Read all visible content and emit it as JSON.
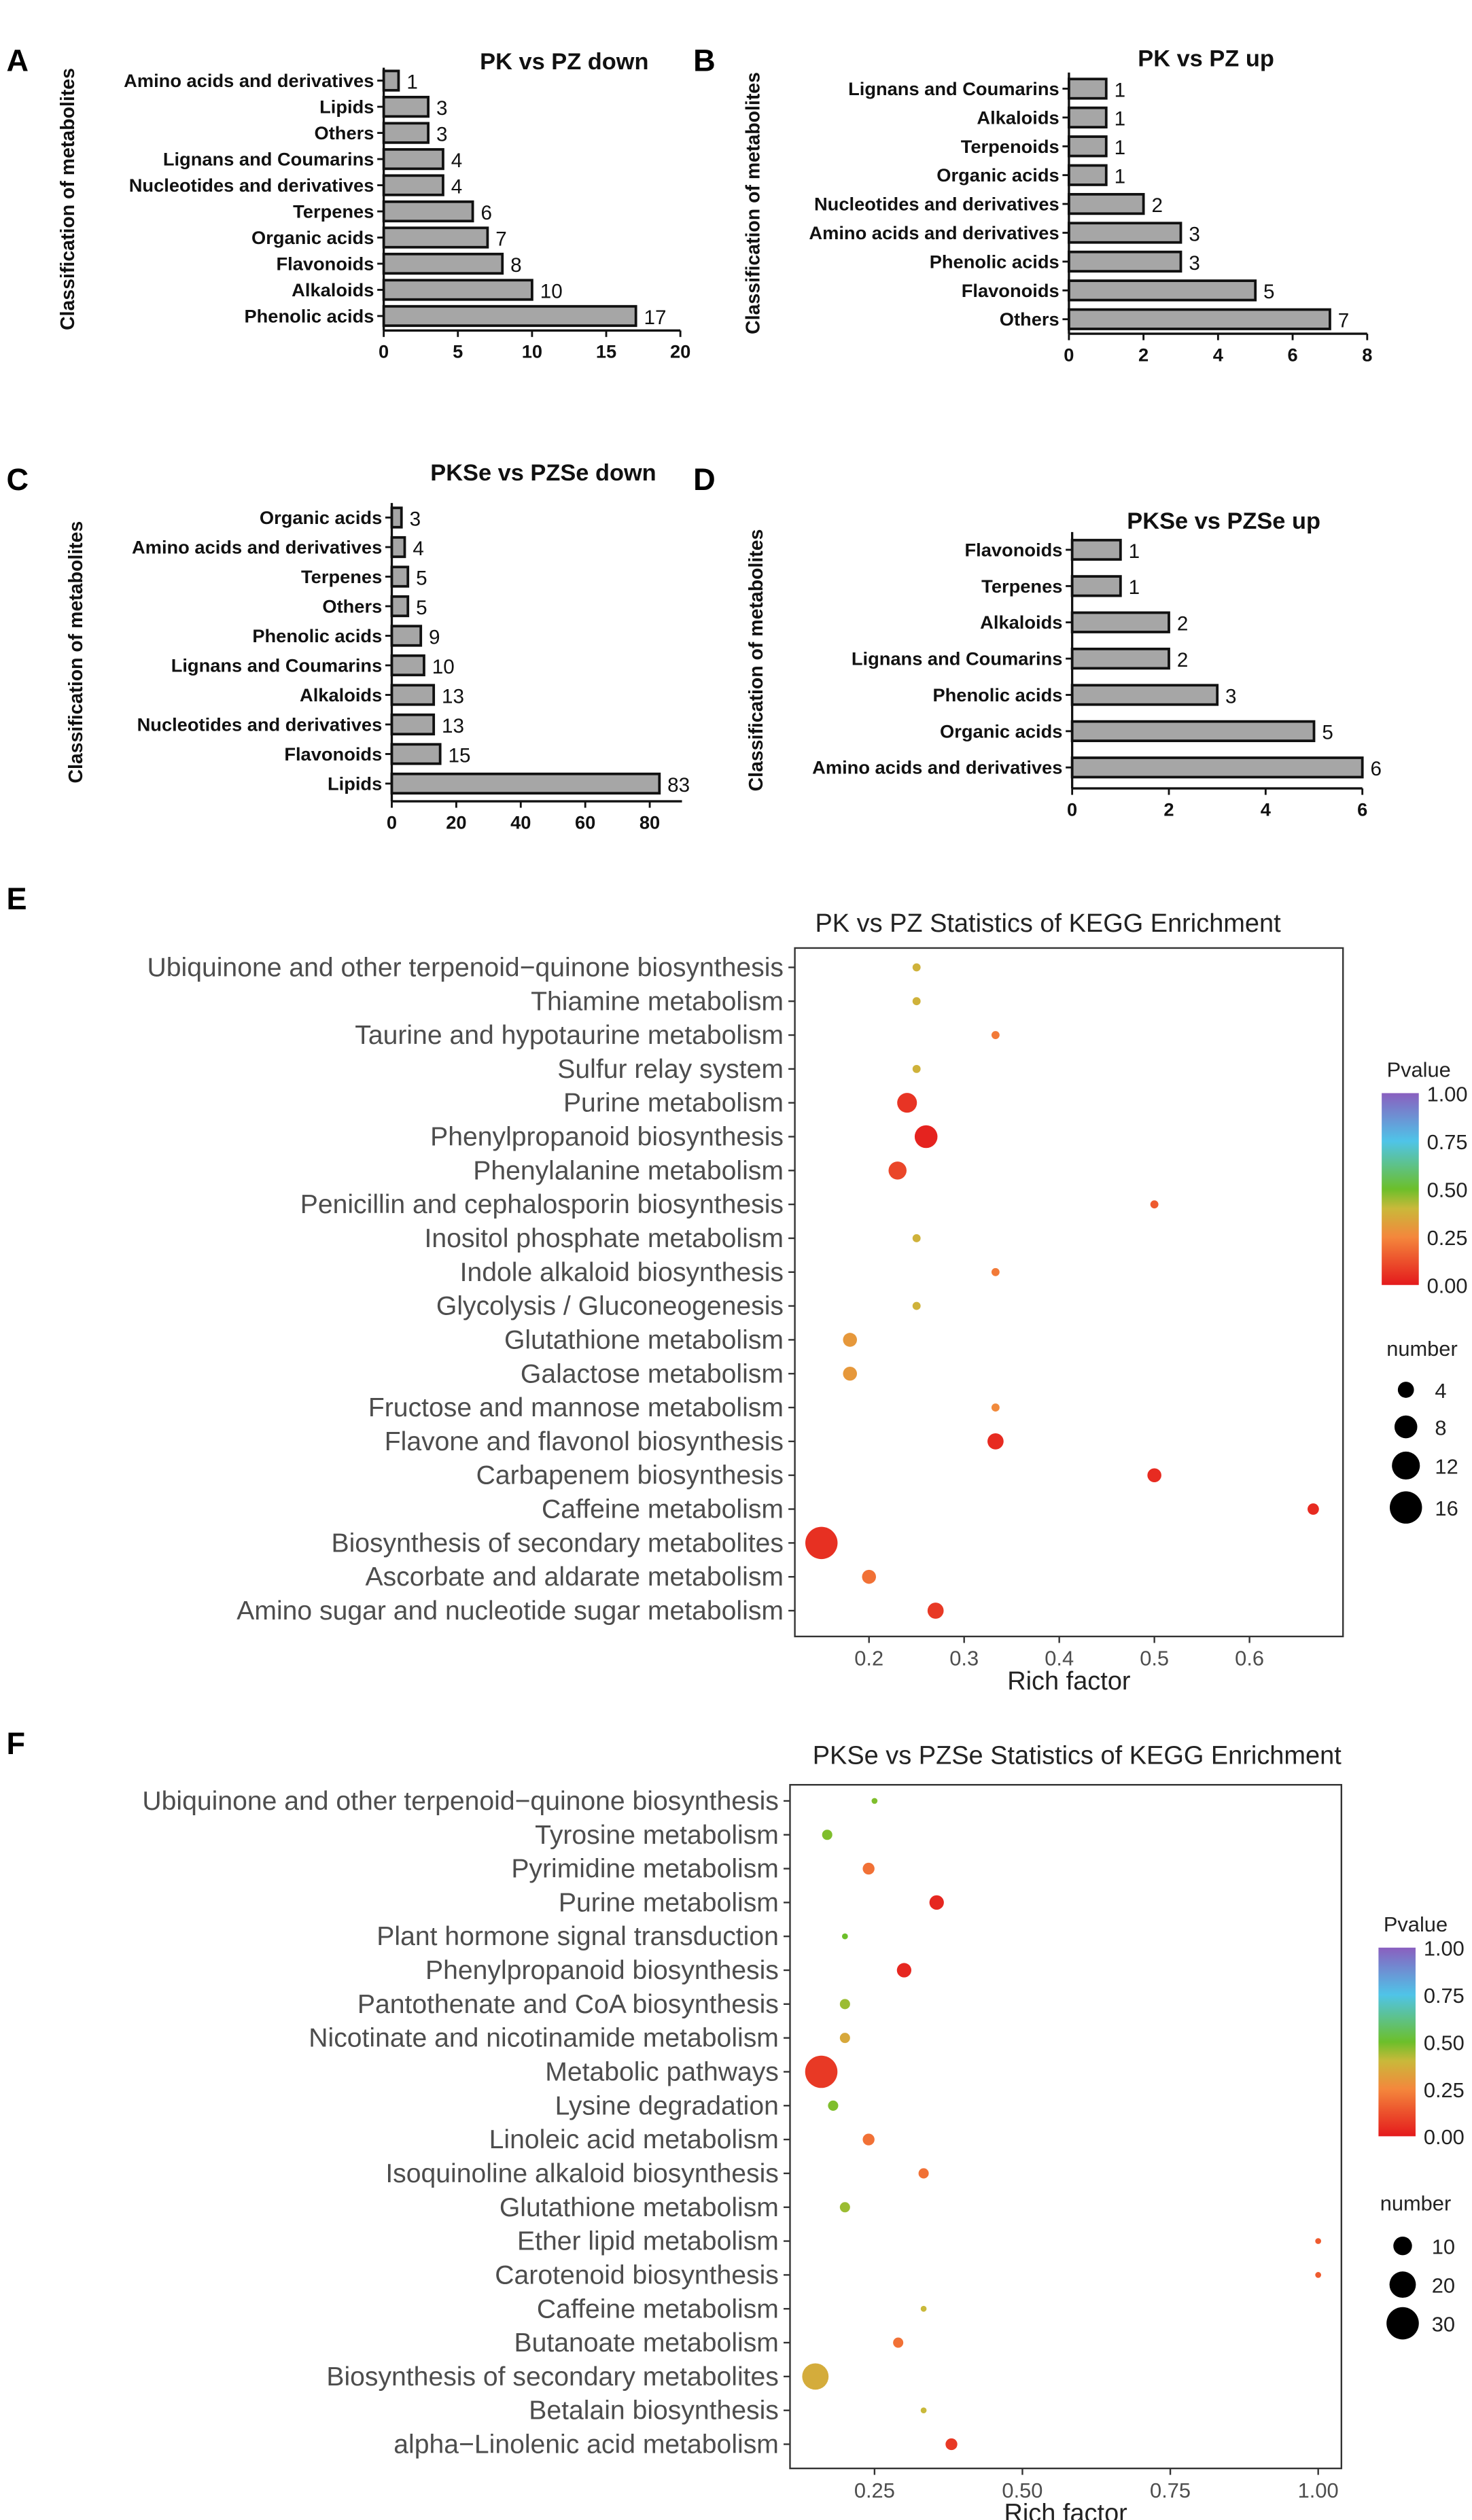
{
  "panel_letters": [
    "A",
    "B",
    "C",
    "D",
    "E",
    "F"
  ],
  "chart_data": [
    {
      "type": "bar",
      "panel": "A",
      "title": "PK vs PZ down",
      "ylabel": "Classification of metabolites",
      "xlabel": "",
      "xlim": [
        0,
        20
      ],
      "xticks": [
        0,
        5,
        10,
        15,
        20
      ],
      "categories": [
        "Amino acids and derivatives",
        "Lipids",
        "Others",
        "Lignans and Coumarins",
        "Nucleotides and derivatives",
        "Terpenes",
        "Organic acids",
        "Flavonoids",
        "Alkaloids",
        "Phenolic acids"
      ],
      "values": [
        1,
        3,
        3,
        4,
        4,
        6,
        7,
        8,
        10,
        17
      ]
    },
    {
      "type": "bar",
      "panel": "B",
      "title": "PK vs PZ up",
      "ylabel": "Classification of metabolites",
      "xlabel": "",
      "xlim": [
        0,
        8
      ],
      "xticks": [
        0,
        2,
        4,
        6,
        8
      ],
      "categories": [
        "Lignans and Coumarins",
        "Alkaloids",
        "Terpenoids",
        "Organic acids",
        "Nucleotides and derivatives",
        "Amino acids and derivatives",
        "Phenolic acids",
        "Flavonoids",
        "Others"
      ],
      "values": [
        1,
        1,
        1,
        1,
        2,
        3,
        3,
        5,
        7
      ]
    },
    {
      "type": "bar",
      "panel": "C",
      "title": "PKSe vs PZSe down",
      "ylabel": "Classification of metabolites",
      "xlabel": "",
      "xlim": [
        0,
        90
      ],
      "xticks": [
        0,
        20,
        40,
        60,
        80
      ],
      "categories": [
        "Organic acids",
        "Amino acids and derivatives",
        "Terpenes",
        "Others",
        "Phenolic acids",
        "Lignans and Coumarins",
        "Alkaloids",
        "Nucleotides and derivatives",
        "Flavonoids",
        "Lipids"
      ],
      "values": [
        3,
        4,
        5,
        5,
        9,
        10,
        13,
        13,
        15,
        83
      ]
    },
    {
      "type": "bar",
      "panel": "D",
      "title": "PKSe vs PZSe up",
      "ylabel": "Classification of metabolites",
      "xlabel": "",
      "xlim": [
        0,
        6
      ],
      "xticks": [
        0,
        2,
        4,
        6
      ],
      "categories": [
        "Flavonoids",
        "Terpenes",
        "Alkaloids",
        "Lignans and Coumarins",
        "Phenolic acids",
        "Organic acids",
        "Amino acids and derivatives"
      ],
      "values": [
        1,
        1,
        2,
        2,
        3,
        5,
        6
      ]
    },
    {
      "type": "scatter",
      "panel": "E",
      "title": "PK vs PZ Statistics of KEGG Enrichment",
      "xlabel": "Rich factor",
      "xticks": [
        "0.2",
        "0.3",
        "0.4",
        "0.5",
        "0.6"
      ],
      "color_legend": {
        "title": "Pvalue",
        "ticks": [
          "1.00",
          "0.75",
          "0.50",
          "0.25",
          "0.00"
        ]
      },
      "size_legend": {
        "title": "number",
        "values": [
          4,
          8,
          12,
          16
        ]
      },
      "points": [
        {
          "pathway": "Ubiquinone and other terpenoid−quinone biosynthesis",
          "rich_factor": 0.25,
          "number": 1,
          "pvalue": 0.38
        },
        {
          "pathway": "Thiamine metabolism",
          "rich_factor": 0.25,
          "number": 1,
          "pvalue": 0.38
        },
        {
          "pathway": "Taurine and hypotaurine metabolism",
          "rich_factor": 0.333,
          "number": 1,
          "pvalue": 0.22
        },
        {
          "pathway": "Sulfur relay system",
          "rich_factor": 0.25,
          "number": 1,
          "pvalue": 0.38
        },
        {
          "pathway": "Purine metabolism",
          "rich_factor": 0.24,
          "number": 6,
          "pvalue": 0.06
        },
        {
          "pathway": "Phenylpropanoid biosynthesis",
          "rich_factor": 0.26,
          "number": 8,
          "pvalue": 0.02
        },
        {
          "pathway": "Phenylalanine metabolism",
          "rich_factor": 0.23,
          "number": 5,
          "pvalue": 0.1
        },
        {
          "pathway": "Penicillin and cephalosporin biosynthesis",
          "rich_factor": 0.5,
          "number": 1,
          "pvalue": 0.15
        },
        {
          "pathway": "Inositol phosphate metabolism",
          "rich_factor": 0.25,
          "number": 1,
          "pvalue": 0.38
        },
        {
          "pathway": "Indole alkaloid biosynthesis",
          "rich_factor": 0.333,
          "number": 1,
          "pvalue": 0.22
        },
        {
          "pathway": "Glycolysis / Gluconeogenesis",
          "rich_factor": 0.25,
          "number": 1,
          "pvalue": 0.38
        },
        {
          "pathway": "Glutathione metabolism",
          "rich_factor": 0.18,
          "number": 3,
          "pvalue": 0.3
        },
        {
          "pathway": "Galactose metabolism",
          "rich_factor": 0.18,
          "number": 3,
          "pvalue": 0.3
        },
        {
          "pathway": "Fructose and mannose metabolism",
          "rich_factor": 0.333,
          "number": 1,
          "pvalue": 0.26
        },
        {
          "pathway": "Flavone and flavonol biosynthesis",
          "rich_factor": 0.333,
          "number": 4,
          "pvalue": 0.04
        },
        {
          "pathway": "Carbapenem biosynthesis",
          "rich_factor": 0.5,
          "number": 3,
          "pvalue": 0.04
        },
        {
          "pathway": "Caffeine metabolism",
          "rich_factor": 0.667,
          "number": 2,
          "pvalue": 0.04
        },
        {
          "pathway": "Biosynthesis of secondary metabolites",
          "rich_factor": 0.15,
          "number": 16,
          "pvalue": 0.05
        },
        {
          "pathway": "Ascorbate and aldarate metabolism",
          "rich_factor": 0.2,
          "number": 3,
          "pvalue": 0.2
        },
        {
          "pathway": "Amino sugar and nucleotide sugar metabolism",
          "rich_factor": 0.27,
          "number": 4,
          "pvalue": 0.07
        }
      ]
    },
    {
      "type": "scatter",
      "panel": "F",
      "title": "PKSe vs PZSe Statistics of KEGG Enrichment",
      "xlabel": "Rich factor",
      "xticks": [
        "0.25",
        "0.50",
        "0.75",
        "1.00"
      ],
      "color_legend": {
        "title": "Pvalue",
        "ticks": [
          "1.00",
          "0.75",
          "0.50",
          "0.25",
          "0.00"
        ]
      },
      "size_legend": {
        "title": "number",
        "values": [
          10,
          20,
          30
        ]
      },
      "points": [
        {
          "pathway": "Ubiquinone and other terpenoid−quinone biosynthesis",
          "rich_factor": 0.25,
          "number": 1,
          "pvalue": 0.48
        },
        {
          "pathway": "Tyrosine metabolism",
          "rich_factor": 0.17,
          "number": 3,
          "pvalue": 0.48
        },
        {
          "pathway": "Pyrimidine metabolism",
          "rich_factor": 0.24,
          "number": 4,
          "pvalue": 0.2
        },
        {
          "pathway": "Purine metabolism",
          "rich_factor": 0.355,
          "number": 6,
          "pvalue": 0.03
        },
        {
          "pathway": "Plant hormone signal transduction",
          "rich_factor": 0.2,
          "number": 1,
          "pvalue": 0.5
        },
        {
          "pathway": "Phenylpropanoid biosynthesis",
          "rich_factor": 0.3,
          "number": 6,
          "pvalue": 0.03
        },
        {
          "pathway": "Pantothenate and CoA biosynthesis",
          "rich_factor": 0.2,
          "number": 3,
          "pvalue": 0.45
        },
        {
          "pathway": "Nicotinate and nicotinamide metabolism",
          "rich_factor": 0.2,
          "number": 3,
          "pvalue": 0.35
        },
        {
          "pathway": "Metabolic pathways",
          "rich_factor": 0.16,
          "number": 30,
          "pvalue": 0.07
        },
        {
          "pathway": "Lysine degradation",
          "rich_factor": 0.18,
          "number": 3,
          "pvalue": 0.48
        },
        {
          "pathway": "Linoleic acid metabolism",
          "rich_factor": 0.24,
          "number": 4,
          "pvalue": 0.2
        },
        {
          "pathway": "Isoquinoline alkaloid biosynthesis",
          "rich_factor": 0.333,
          "number": 3,
          "pvalue": 0.2
        },
        {
          "pathway": "Glutathione metabolism",
          "rich_factor": 0.2,
          "number": 3,
          "pvalue": 0.45
        },
        {
          "pathway": "Ether lipid metabolism",
          "rich_factor": 1.0,
          "number": 1,
          "pvalue": 0.15
        },
        {
          "pathway": "Carotenoid biosynthesis",
          "rich_factor": 1.0,
          "number": 1,
          "pvalue": 0.15
        },
        {
          "pathway": "Caffeine metabolism",
          "rich_factor": 0.333,
          "number": 1,
          "pvalue": 0.4
        },
        {
          "pathway": "Butanoate metabolism",
          "rich_factor": 0.29,
          "number": 3,
          "pvalue": 0.2
        },
        {
          "pathway": "Biosynthesis of secondary metabolites",
          "rich_factor": 0.15,
          "number": 20,
          "pvalue": 0.36
        },
        {
          "pathway": "Betalain biosynthesis",
          "rich_factor": 0.333,
          "number": 1,
          "pvalue": 0.4
        },
        {
          "pathway": "alpha−Linolenic acid metabolism",
          "rich_factor": 0.38,
          "number": 4,
          "pvalue": 0.07
        }
      ]
    }
  ],
  "colors": {
    "bar_fill": "#a6a6a6",
    "bar_stroke": "#111111",
    "scale": [
      "#e41a1c",
      "#f4873c",
      "#c9b93a",
      "#6cbf2a",
      "#4fc4e8",
      "#8a5fbf"
    ]
  }
}
